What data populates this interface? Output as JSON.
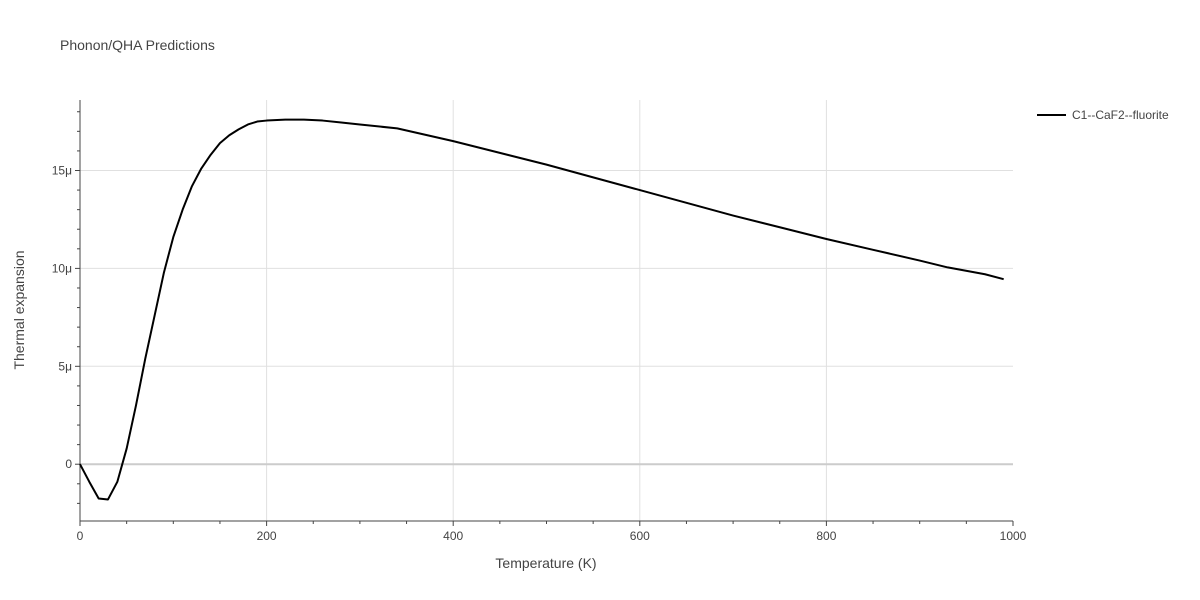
{
  "chart_data": {
    "type": "line",
    "title": "Phonon/QHA Predictions",
    "xlabel": "Temperature (K)",
    "ylabel": "Thermal expansion",
    "xlim": [
      0,
      1000
    ],
    "ylim": [
      -2.9e-06,
      1.86e-05
    ],
    "x_ticks": [
      0,
      200,
      400,
      600,
      800,
      1000
    ],
    "x_tick_labels": [
      "0",
      "200",
      "400",
      "600",
      "800",
      "1000"
    ],
    "y_ticks": [
      0,
      5e-06,
      1e-05,
      1.5e-05
    ],
    "y_tick_labels": [
      "0",
      "5μ",
      "10μ",
      "15μ"
    ],
    "grid": true,
    "legend_position": "top-right",
    "series": [
      {
        "name": "C1--CaF2--fluorite",
        "color": "#000000",
        "x": [
          0,
          10,
          20,
          30,
          40,
          50,
          60,
          70,
          80,
          90,
          100,
          110,
          120,
          130,
          140,
          150,
          160,
          170,
          180,
          190,
          200,
          220,
          240,
          260,
          280,
          300,
          340,
          400,
          450,
          500,
          550,
          600,
          650,
          700,
          750,
          800,
          850,
          900,
          930,
          970,
          990
        ],
        "y": [
          0,
          -9e-07,
          -1.75e-06,
          -1.8e-06,
          -9e-07,
          8e-07,
          3e-06,
          5.4e-06,
          7.6e-06,
          9.8e-06,
          1.16e-05,
          1.3e-05,
          1.42e-05,
          1.51e-05,
          1.58e-05,
          1.64e-05,
          1.68e-05,
          1.71e-05,
          1.735e-05,
          1.75e-05,
          1.755e-05,
          1.76e-05,
          1.76e-05,
          1.755e-05,
          1.745e-05,
          1.735e-05,
          1.715e-05,
          1.65e-05,
          1.59e-05,
          1.53e-05,
          1.465e-05,
          1.4e-05,
          1.335e-05,
          1.27e-05,
          1.21e-05,
          1.15e-05,
          1.095e-05,
          1.04e-05,
          1.005e-05,
          9.7e-06,
          9.45e-06
        ]
      }
    ]
  }
}
